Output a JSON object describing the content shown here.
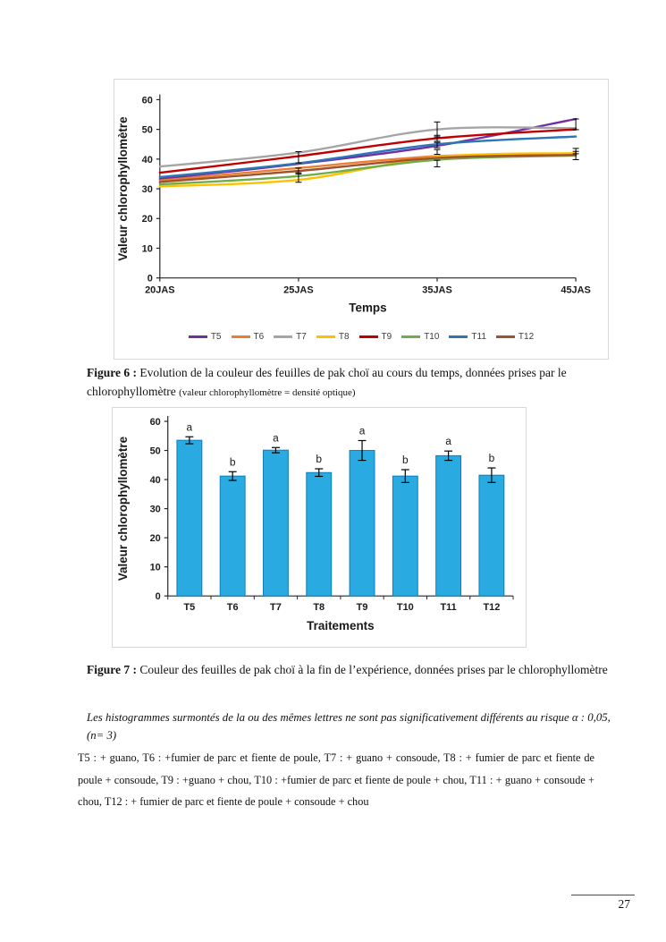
{
  "page": {
    "number": "27"
  },
  "figure6": {
    "caption_label": "Figure 6 :",
    "caption_text": "Evolution de la couleur des feuilles de pak choï au cours du temps, données prises par le chlorophyllomètre",
    "caption_note": "(valeur chlorophyllomètre = densité optique)"
  },
  "figure7": {
    "caption_label": "Figure 7 :",
    "caption_text": "Couleur des feuilles de pak choï à la fin de l’expérience, données prises par le chlorophyllomètre"
  },
  "stats_note": "Les histogrammes surmontés de la ou des mêmes lettres ne sont pas significativement différents au risque α : 0,05, (n= 3)",
  "treatments_text": "T5 : + guano, T6 : +fumier de parc et fiente de poule, T7 : + guano + consoude, T8 : + fumier de parc et fiente de poule + consoude, T9 : +guano + chou, T10 : +fumier de parc et fiente de poule + chou, T11 : + guano + consoude + chou, T12 : + fumier de parc et fiente de poule + consoude + chou",
  "chart_data": [
    {
      "type": "line",
      "x_categories": [
        "20JAS",
        "25JAS",
        "35JAS",
        "45JAS"
      ],
      "xlabel": "Temps",
      "ylabel": "Valeur chlorophyllomètre",
      "ylim": [
        0,
        60
      ],
      "yticks": [
        0,
        10,
        20,
        30,
        40,
        50,
        60
      ],
      "grid": false,
      "legend_position": "bottom",
      "series": [
        {
          "name": "T5",
          "color": "#7030A0",
          "values": [
            33.3,
            38.4,
            44.5,
            53.5
          ]
        },
        {
          "name": "T6",
          "color": "#ED7D31",
          "values": [
            32.8,
            37.0,
            41.0,
            41.8
          ]
        },
        {
          "name": "T7",
          "color": "#A5A5A5",
          "values": [
            37.5,
            42.2,
            50.0,
            50.4
          ]
        },
        {
          "name": "T8",
          "color": "#FFC000",
          "values": [
            30.8,
            33.0,
            40.7,
            42.0
          ]
        },
        {
          "name": "T9",
          "color": "#C00000",
          "values": [
            35.4,
            41.0,
            47.0,
            50.0
          ]
        },
        {
          "name": "T10",
          "color": "#70AD47",
          "values": [
            31.5,
            34.3,
            39.8,
            41.2
          ]
        },
        {
          "name": "T11",
          "color": "#2E75B6",
          "values": [
            33.9,
            38.6,
            45.0,
            47.6
          ]
        },
        {
          "name": "T12",
          "color": "#A0522D",
          "values": [
            32.3,
            36.0,
            40.4,
            41.4
          ]
        }
      ],
      "error_bars": [
        {
          "x": 1,
          "y": 40.6,
          "e": 1.9
        },
        {
          "x": 1,
          "y": 36.0,
          "e": 1.0
        },
        {
          "x": 1,
          "y": 33.8,
          "e": 1.6
        },
        {
          "x": 2,
          "y": 50.0,
          "e": 2.5
        },
        {
          "x": 2,
          "y": 47.0,
          "e": 1.0
        },
        {
          "x": 2,
          "y": 44.7,
          "e": 0.9
        },
        {
          "x": 2,
          "y": 42.4,
          "e": 0.8
        },
        {
          "x": 2,
          "y": 38.5,
          "e": 1.1
        },
        {
          "x": 3,
          "y": 51.7,
          "e": 1.8
        },
        {
          "x": 3,
          "y": 42.7,
          "e": 0.9
        },
        {
          "x": 3,
          "y": 41.2,
          "e": 1.4
        }
      ],
      "error_color": "#000000"
    },
    {
      "type": "bar",
      "categories": [
        "T5",
        "T6",
        "T7",
        "T8",
        "T9",
        "T10",
        "T11",
        "T12"
      ],
      "values": [
        53.5,
        41.2,
        50.1,
        42.4,
        50.0,
        41.2,
        48.2,
        41.5
      ],
      "errors": [
        1.2,
        1.5,
        0.9,
        1.3,
        3.4,
        2.2,
        1.6,
        2.5
      ],
      "significance_letters": [
        "a",
        "b",
        "a",
        "b",
        "a",
        "b",
        "a",
        "b"
      ],
      "xlabel": "Traitements",
      "ylabel": "Valeur chlorophyllomètre",
      "ylim": [
        0,
        60
      ],
      "yticks": [
        0,
        10,
        20,
        30,
        40,
        50,
        60
      ],
      "grid": false,
      "bar_color": "#29ABE2",
      "bar_border_color": "#0E7DB8",
      "error_color": "#000000"
    }
  ]
}
